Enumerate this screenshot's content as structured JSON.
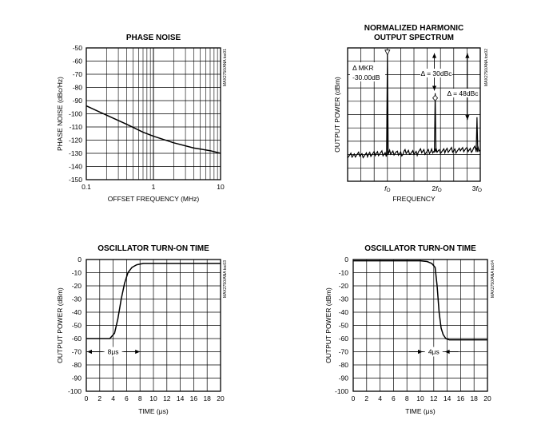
{
  "chart_data": [
    {
      "type": "line",
      "title": "PHASE NOISE",
      "xlabel": "OFFSET FREQUENCY (MHz)",
      "ylabel": "PHASE NOISE (dBc/Hz)",
      "xscale": "log",
      "xlim": [
        0.1,
        10
      ],
      "ylim": [
        -150,
        -50
      ],
      "x_ticks": [
        0.1,
        1,
        10
      ],
      "x_tick_labels": [
        "0.1",
        "1",
        "10"
      ],
      "y_ticks": [
        -50,
        -60,
        -70,
        -80,
        -90,
        -100,
        -110,
        -120,
        -130,
        -140,
        -150
      ],
      "y_tick_labels": [
        "-50",
        "-60",
        "-70",
        "-80",
        "-90",
        "-100",
        "-110",
        "-120",
        "-130",
        "-140",
        "-150"
      ],
      "side_label": "MAX2750/ANA toc01",
      "series": [
        {
          "name": "phase noise",
          "x": [
            0.1,
            0.2,
            0.4,
            0.7,
            1.0,
            2.0,
            4.0,
            7.0,
            10.0
          ],
          "y": [
            -94,
            -101,
            -108,
            -114,
            -117,
            -122,
            -126,
            -128,
            -130
          ]
        }
      ]
    },
    {
      "type": "line",
      "title": "NORMALIZED HARMONIC OUTPUT SPECTRUM",
      "title_lines": [
        "NORMALIZED HARMONIC",
        "OUTPUT SPECTRUM"
      ],
      "xlabel": "FREQUENCY",
      "ylabel": "OUTPUT POWER (dBm)",
      "x_tick_labels": [
        "f0",
        "2f0",
        "3f0"
      ],
      "x_tick_labels_display": [
        [
          "",
          "f",
          "O"
        ],
        [
          "2",
          "f",
          "O"
        ],
        [
          "3",
          "f",
          "O"
        ]
      ],
      "xlim": [
        0,
        10
      ],
      "ylim": [
        0,
        10
      ],
      "x_ticks": [
        0,
        1,
        2,
        3,
        4,
        5,
        6,
        7,
        8,
        9,
        10
      ],
      "y_ticks": [
        0,
        1,
        2,
        3,
        4,
        5,
        6,
        7,
        8,
        9,
        10
      ],
      "side_label": "MAX2750/ANA toc02",
      "annotations": [
        "Δ MKR",
        "-30.00dB",
        "Δ = 30dBc",
        "Δ = 48dBc"
      ],
      "noise_floor": [
        1.93,
        2.0,
        1.95,
        2.05,
        2.1,
        2.03,
        2.15,
        2.08,
        2.2,
        2.12,
        2.25,
        2.2,
        2.3,
        2.25,
        2.35,
        2.3,
        2.4,
        2.35,
        2.45,
        2.4
      ],
      "peaks": [
        {
          "label": "f0",
          "x": 3.0,
          "level": 9.6
        },
        {
          "label": "2f0",
          "x": 6.6,
          "level": 6.6
        },
        {
          "label": "3f0",
          "x": 9.75,
          "level": 4.8
        }
      ]
    },
    {
      "type": "line",
      "title": "OSCILLATOR TURN-ON TIME",
      "xlabel": "TIME (μs)",
      "ylabel": "OUTPUT POWER (dBm)",
      "xlim": [
        0,
        20
      ],
      "ylim": [
        -100,
        0
      ],
      "x_ticks": [
        0,
        2,
        4,
        6,
        8,
        10,
        12,
        14,
        16,
        18,
        20
      ],
      "x_tick_labels": [
        "0",
        "2",
        "4",
        "6",
        "8",
        "10",
        "12",
        "14",
        "16",
        "18",
        "20"
      ],
      "y_ticks": [
        0,
        -10,
        -20,
        -30,
        -40,
        -50,
        -60,
        -70,
        -80,
        -90,
        -100
      ],
      "y_tick_labels": [
        "0",
        "-10",
        "-20",
        "-30",
        "-40",
        "-50",
        "-60",
        "-70",
        "-80",
        "-90",
        "-100"
      ],
      "side_label": "MAX2750/ANA toc03",
      "annotation": "8μs",
      "annotation_span": [
        0,
        8
      ],
      "series": [
        {
          "name": "output power",
          "x": [
            0,
            3.5,
            4.2,
            4.7,
            5.2,
            5.7,
            6.2,
            6.8,
            7.5,
            8.5,
            20
          ],
          "y": [
            -60,
            -60,
            -56,
            -45,
            -30,
            -18,
            -10,
            -6,
            -4,
            -3,
            -3
          ]
        }
      ]
    },
    {
      "type": "line",
      "title": "OSCILLATOR TURN-ON TIME",
      "xlabel": "TIME (μs)",
      "ylabel": "OUTPUT POWER (dBm)",
      "xlim": [
        0,
        20
      ],
      "ylim": [
        -100,
        0
      ],
      "x_ticks": [
        0,
        2,
        4,
        6,
        8,
        10,
        12,
        14,
        16,
        18,
        20
      ],
      "x_tick_labels": [
        "0",
        "2",
        "4",
        "6",
        "8",
        "10",
        "12",
        "14",
        "16",
        "18",
        "20"
      ],
      "y_ticks": [
        0,
        -10,
        -20,
        -30,
        -40,
        -50,
        -60,
        -70,
        -80,
        -90,
        -100
      ],
      "y_tick_labels": [
        "0",
        "-10",
        "-20",
        "-30",
        "-40",
        "-50",
        "-60",
        "-70",
        "-80",
        "-90",
        "-100"
      ],
      "side_label": "MAX2750/ANA toc04",
      "annotation": "4μs",
      "annotation_span": [
        10,
        14
      ],
      "series": [
        {
          "name": "output power",
          "x": [
            0,
            10,
            11,
            11.7,
            12.2,
            12.5,
            12.8,
            13.1,
            13.4,
            13.8,
            14.3,
            20
          ],
          "y": [
            -1,
            -1,
            -1.5,
            -3,
            -6,
            -20,
            -40,
            -52,
            -57,
            -60,
            -61,
            -61
          ]
        }
      ]
    }
  ]
}
